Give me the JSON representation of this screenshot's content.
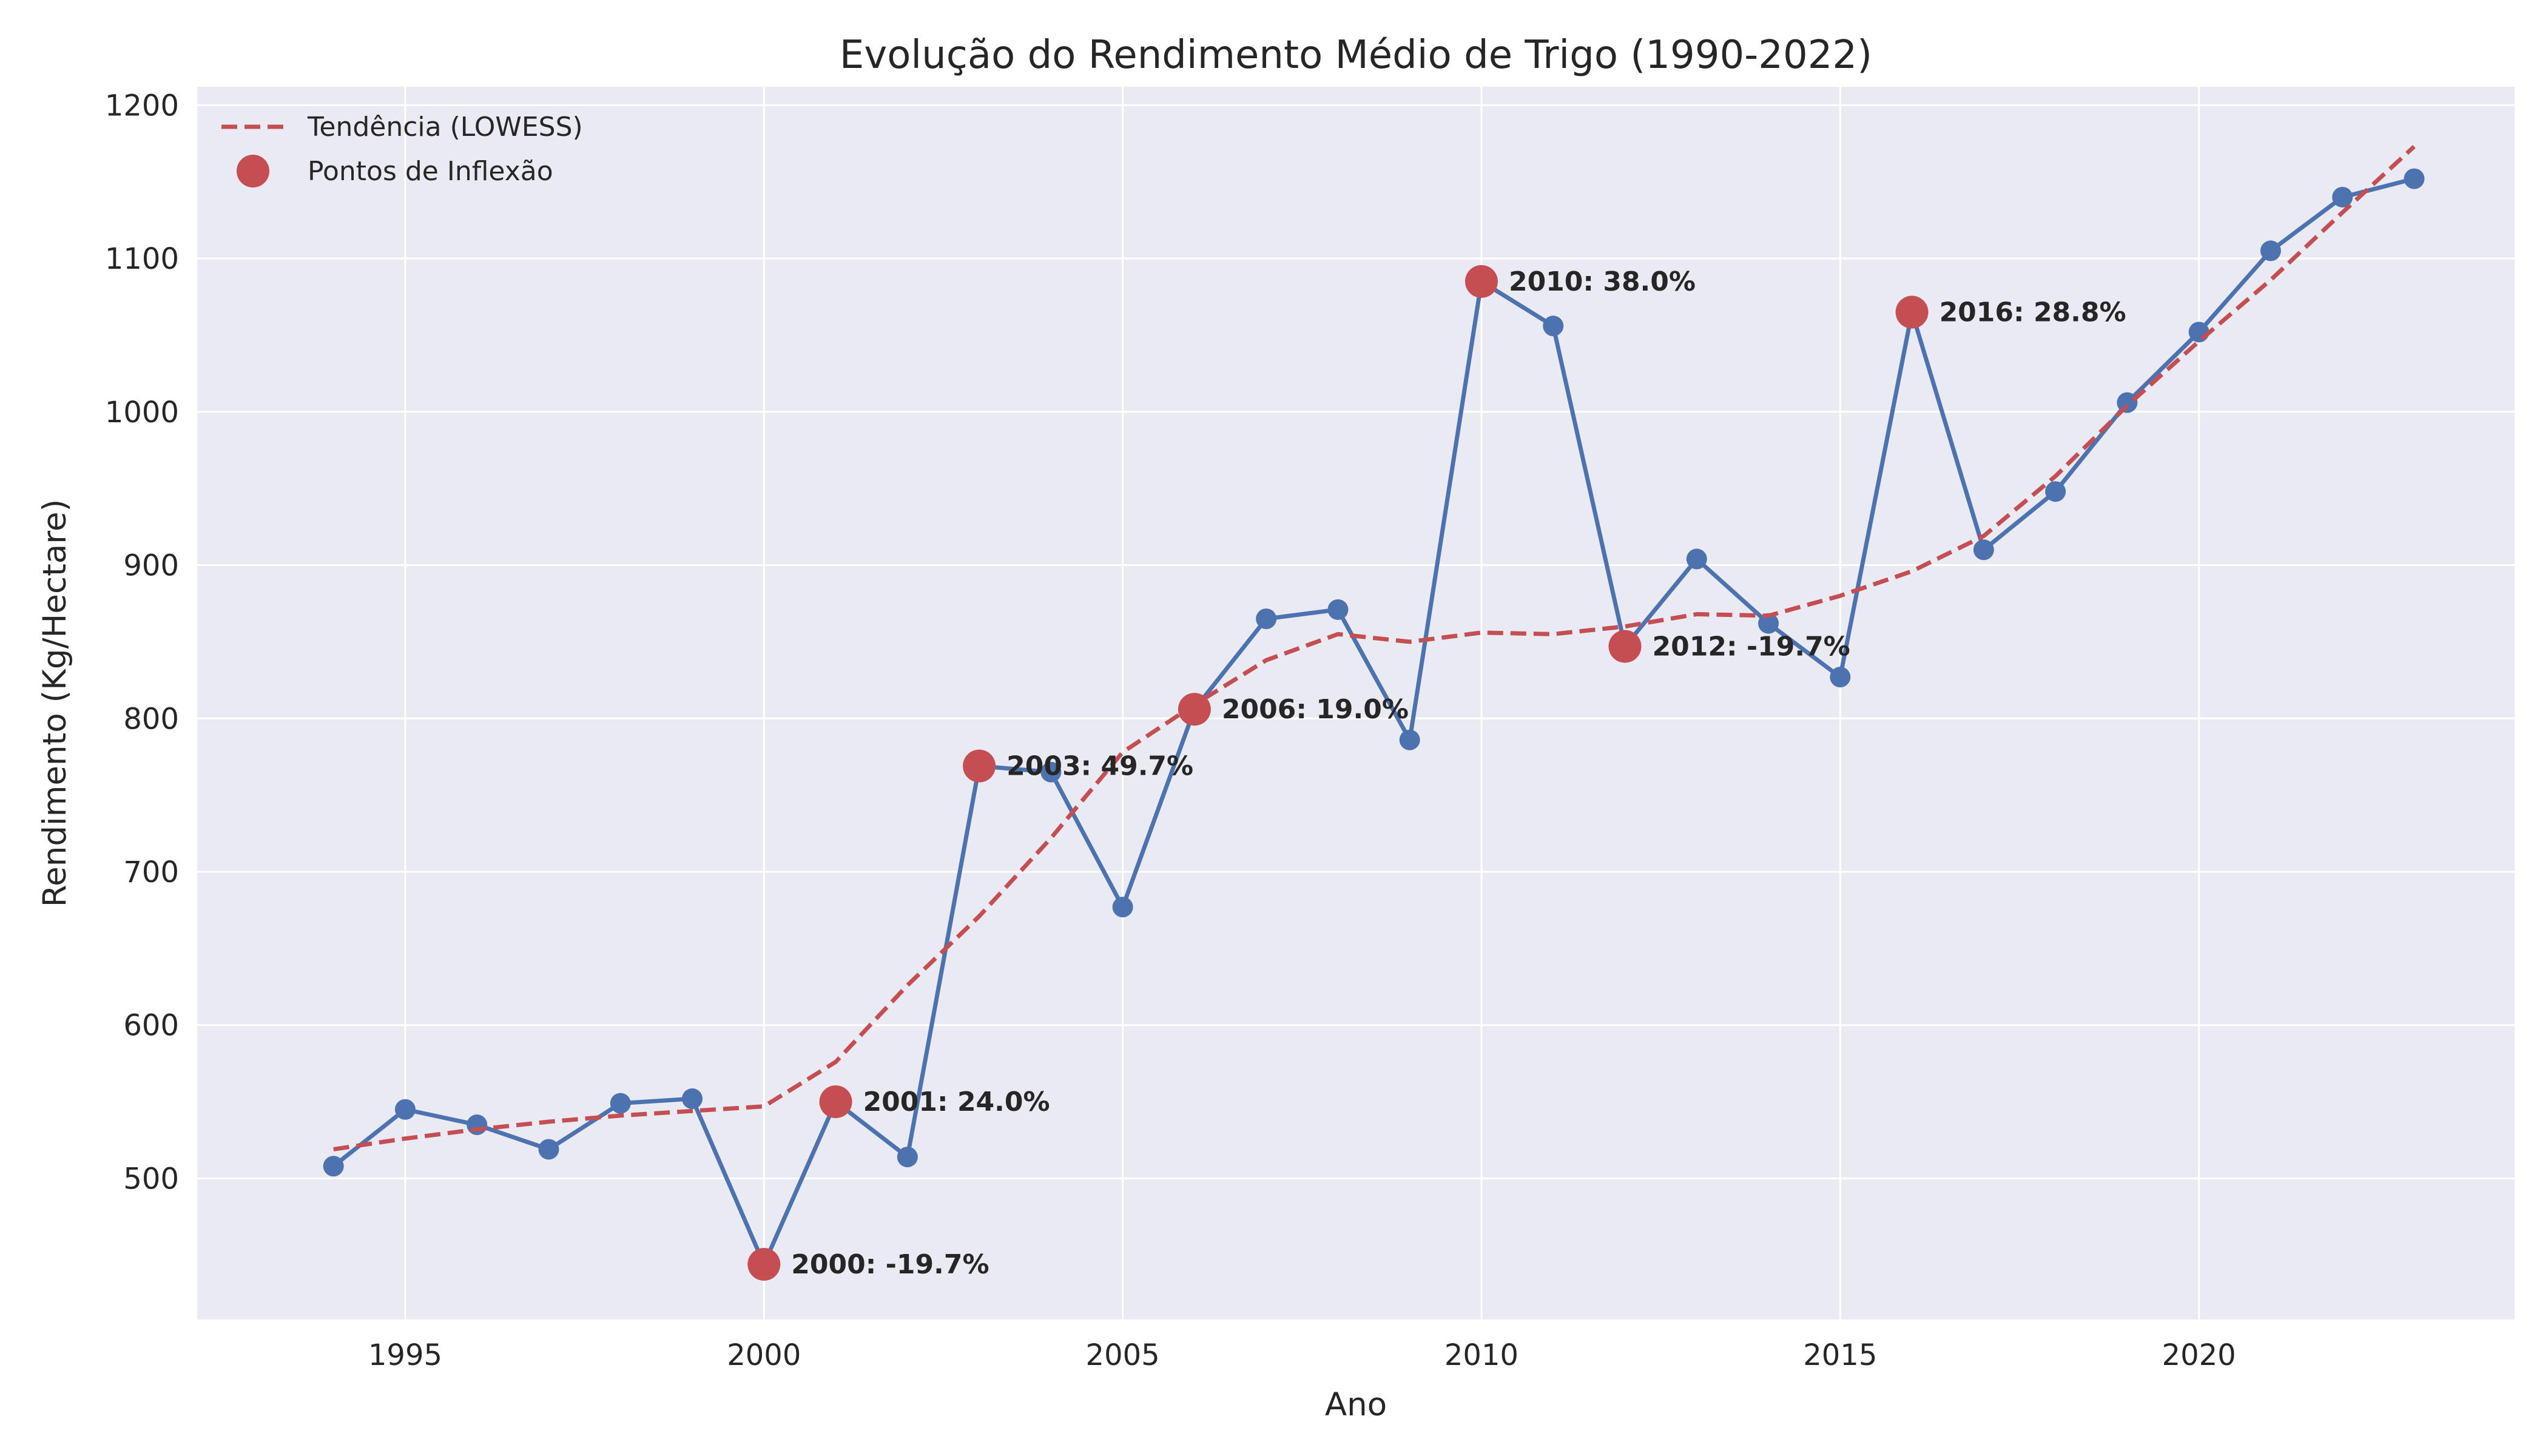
{
  "chart_data": {
    "type": "line",
    "title": "Evolução do Rendimento Médio de Trigo (1990-2022)",
    "xlabel": "Ano",
    "ylabel": "Rendimento (Kg/Hectare)",
    "xlim": [
      1992.1,
      2024.4
    ],
    "ylim": [
      408,
      1212
    ],
    "xticks": [
      1995,
      2000,
      2005,
      2010,
      2015,
      2020
    ],
    "yticks": [
      500,
      600,
      700,
      800,
      900,
      1000,
      1100,
      1200
    ],
    "grid": true,
    "legend_position": "top-left",
    "colors": {
      "plot_background": "#EAEAF2",
      "grid": "#FFFFFF",
      "series": "#4C72B0",
      "trend": "#C44E52",
      "inflection": "#C44E52"
    },
    "series": [
      {
        "x": [
          1994,
          1995,
          1996,
          1997,
          1998,
          1999,
          2000,
          2001,
          2002,
          2003,
          2004,
          2005,
          2006,
          2007,
          2008,
          2009,
          2010,
          2011,
          2012,
          2013,
          2014,
          2015,
          2016,
          2017,
          2018,
          2019,
          2020,
          2021,
          2022,
          2023
        ],
        "values": [
          508,
          545,
          535,
          519,
          549,
          552,
          444,
          550,
          514,
          769,
          765,
          677,
          806,
          865,
          871,
          786,
          1085,
          1056,
          847,
          904,
          862,
          827,
          1065,
          910,
          948,
          1006,
          1052,
          1105,
          1140,
          1152
        ]
      },
      {
        "name": "Tendência (LOWESS)",
        "x": [
          1994,
          1995,
          1996,
          1997,
          1998,
          1999,
          2000,
          2001,
          2002,
          2003,
          2004,
          2005,
          2006,
          2007,
          2008,
          2009,
          2010,
          2011,
          2012,
          2013,
          2014,
          2015,
          2016,
          2017,
          2018,
          2019,
          2020,
          2021,
          2022,
          2023
        ],
        "values": [
          519,
          526,
          532,
          537,
          541,
          544,
          547,
          576,
          626,
          671,
          722,
          778,
          809,
          838,
          855,
          850,
          856,
          855,
          860,
          868,
          867,
          880,
          896,
          919,
          958,
          1004,
          1046,
          1086,
          1130,
          1173
        ]
      },
      {
        "name": "Pontos de Inflexão",
        "x": [
          2000,
          2001,
          2003,
          2006,
          2010,
          2012,
          2016
        ],
        "values": [
          444,
          550,
          769,
          806,
          1085,
          847,
          1065
        ]
      }
    ],
    "annotations": [
      {
        "x": 2000,
        "y": 444,
        "text": "2000: -19.7%"
      },
      {
        "x": 2001,
        "y": 550,
        "text": "2001: 24.0%"
      },
      {
        "x": 2003,
        "y": 769,
        "text": "2003: 49.7%"
      },
      {
        "x": 2006,
        "y": 806,
        "text": "2006: 19.0%"
      },
      {
        "x": 2010,
        "y": 1085,
        "text": "2010: 38.0%"
      },
      {
        "x": 2012,
        "y": 847,
        "text": "2012: -19.7%"
      },
      {
        "x": 2016,
        "y": 1065,
        "text": "2016: 28.8%"
      }
    ]
  }
}
